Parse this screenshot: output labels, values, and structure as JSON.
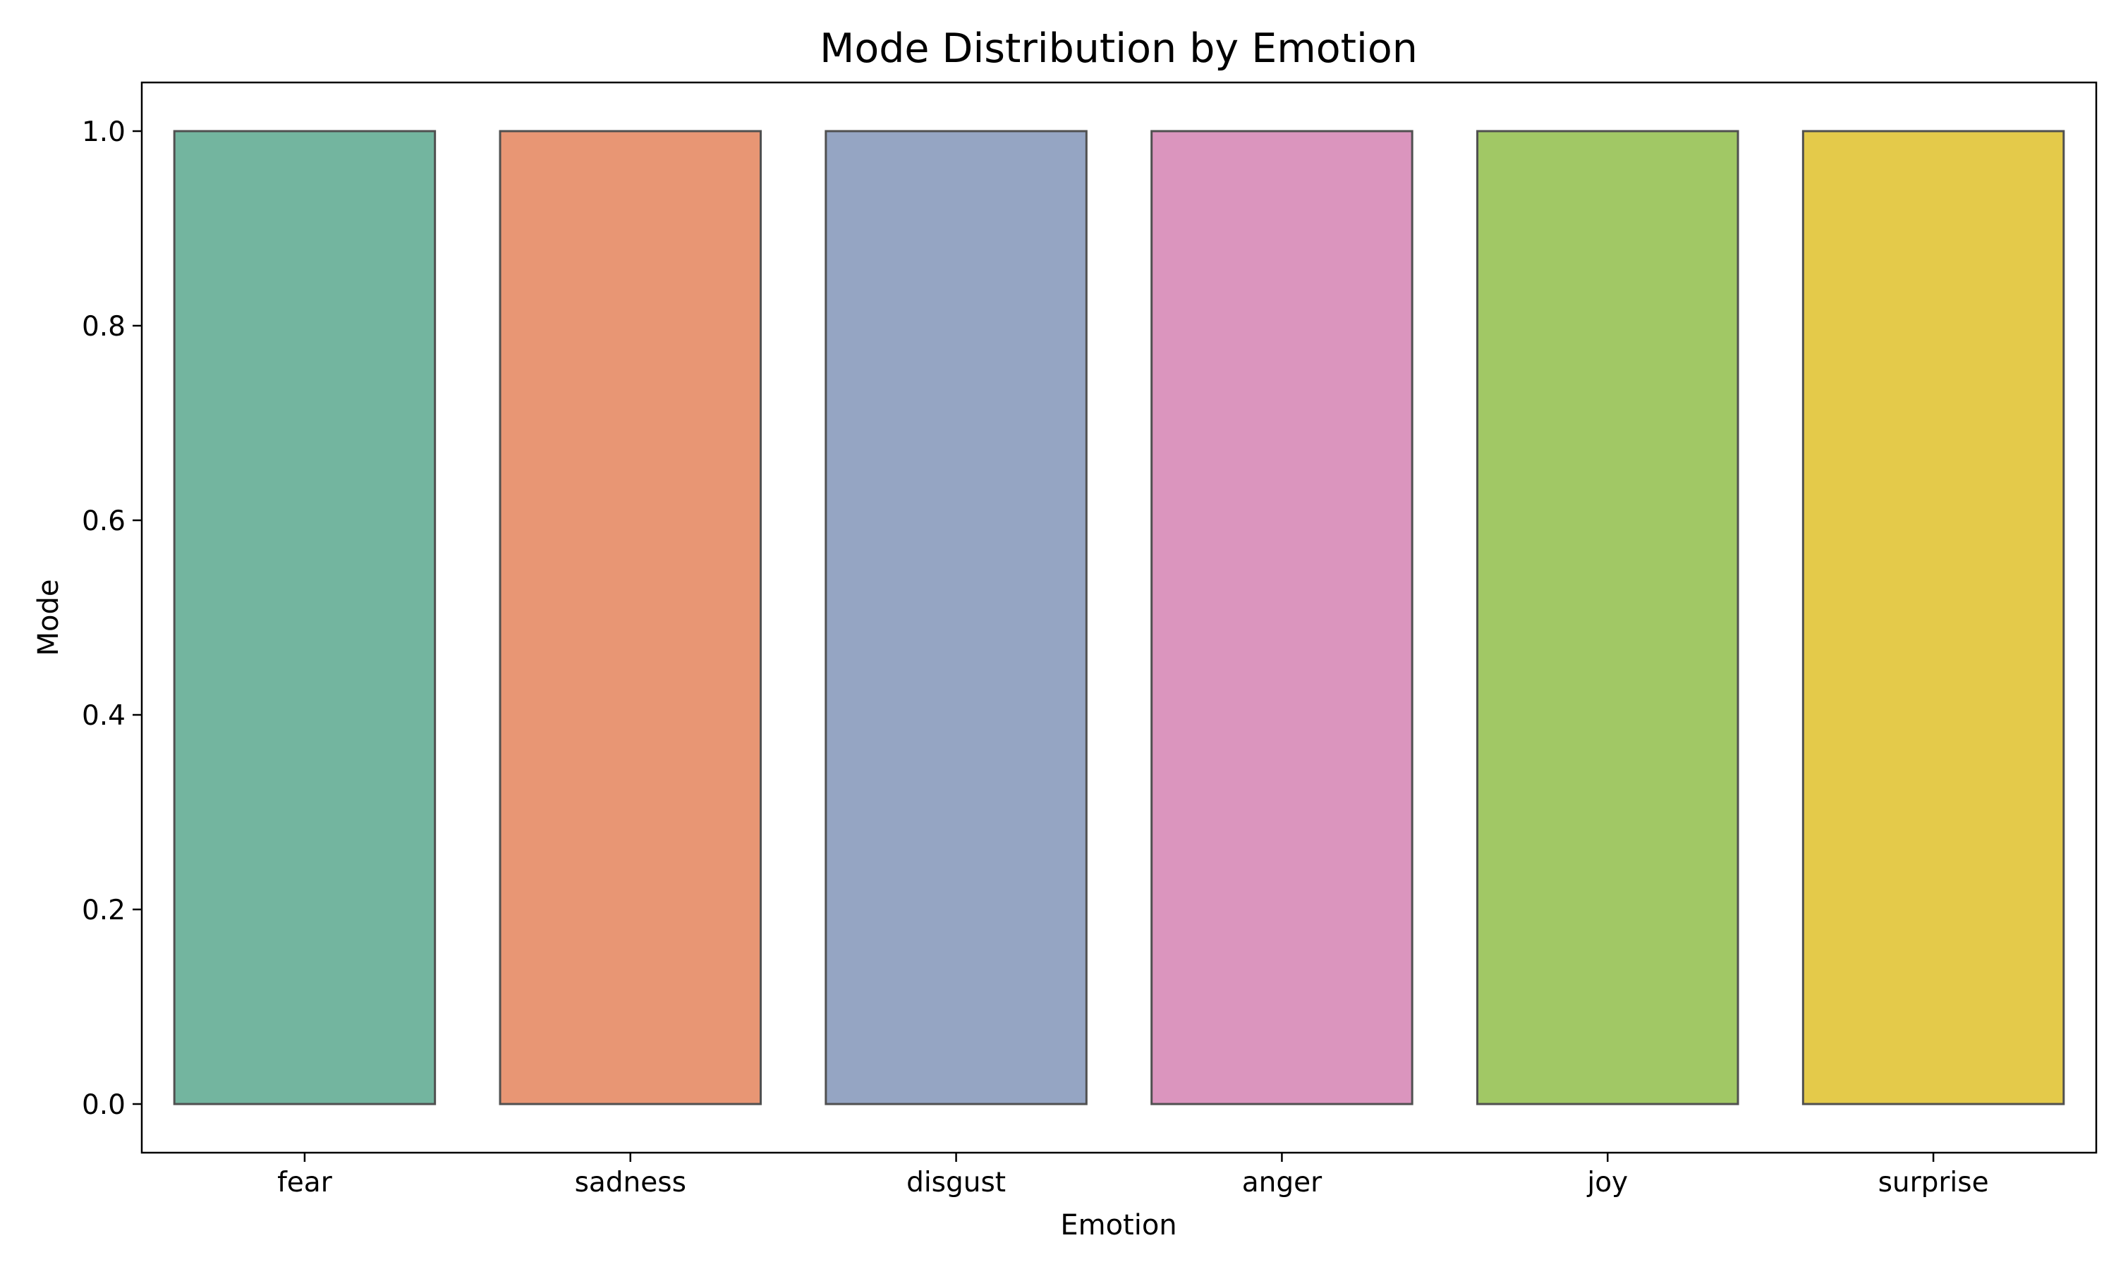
{
  "chart_data": {
    "type": "bar",
    "title": "Mode Distribution by Emotion",
    "xlabel": "Emotion",
    "ylabel": "Mode",
    "categories": [
      "fear",
      "sadness",
      "disgust",
      "anger",
      "joy",
      "surprise"
    ],
    "values": [
      1.0,
      1.0,
      1.0,
      1.0,
      1.0,
      1.0
    ],
    "colors": [
      "#73b59f",
      "#e89674",
      "#95a5c3",
      "#db95be",
      "#a1c865",
      "#e4ca4a"
    ],
    "bar_edge_color": "#505050",
    "ylim": [
      -0.05,
      1.05
    ],
    "yticks": [
      0.0,
      0.2,
      0.4,
      0.6,
      0.8,
      1.0
    ],
    "ytick_labels": [
      "0.0",
      "0.2",
      "0.4",
      "0.6",
      "0.8",
      "1.0"
    ],
    "grid": false,
    "legend": "none"
  }
}
